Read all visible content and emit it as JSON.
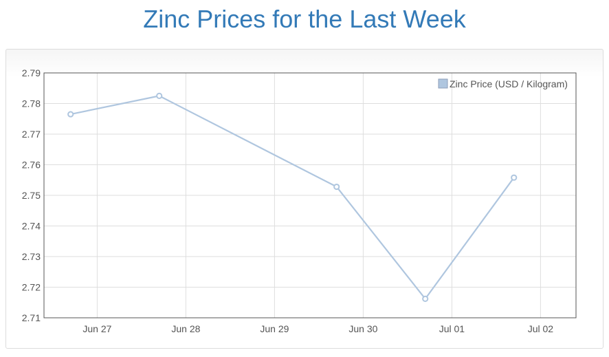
{
  "page": {
    "title": "Zinc Prices for the Last Week"
  },
  "chart_data": {
    "type": "line",
    "title": "Zinc Prices for the Last Week",
    "xlabel": "",
    "ylabel": "",
    "x_tick_labels": [
      "Jun 27",
      "Jun 28",
      "Jun 29",
      "Jun 30",
      "Jul 01",
      "Jul 02"
    ],
    "y_tick_labels": [
      "2.71",
      "2.72",
      "2.73",
      "2.74",
      "2.75",
      "2.76",
      "2.77",
      "2.78",
      "2.79"
    ],
    "ylim": [
      2.71,
      2.79
    ],
    "grid": true,
    "legend_position": "top-right",
    "series": [
      {
        "name": "Zinc Price (USD / Kilogram)",
        "color": "#afc6df",
        "points": [
          {
            "x": 26.7,
            "y": 2.7765
          },
          {
            "x": 27.7,
            "y": 2.7825
          },
          {
            "x": 29.7,
            "y": 2.7528
          },
          {
            "x": 30.7,
            "y": 2.7162
          },
          {
            "x": 31.7,
            "y": 2.7558
          }
        ]
      }
    ]
  }
}
